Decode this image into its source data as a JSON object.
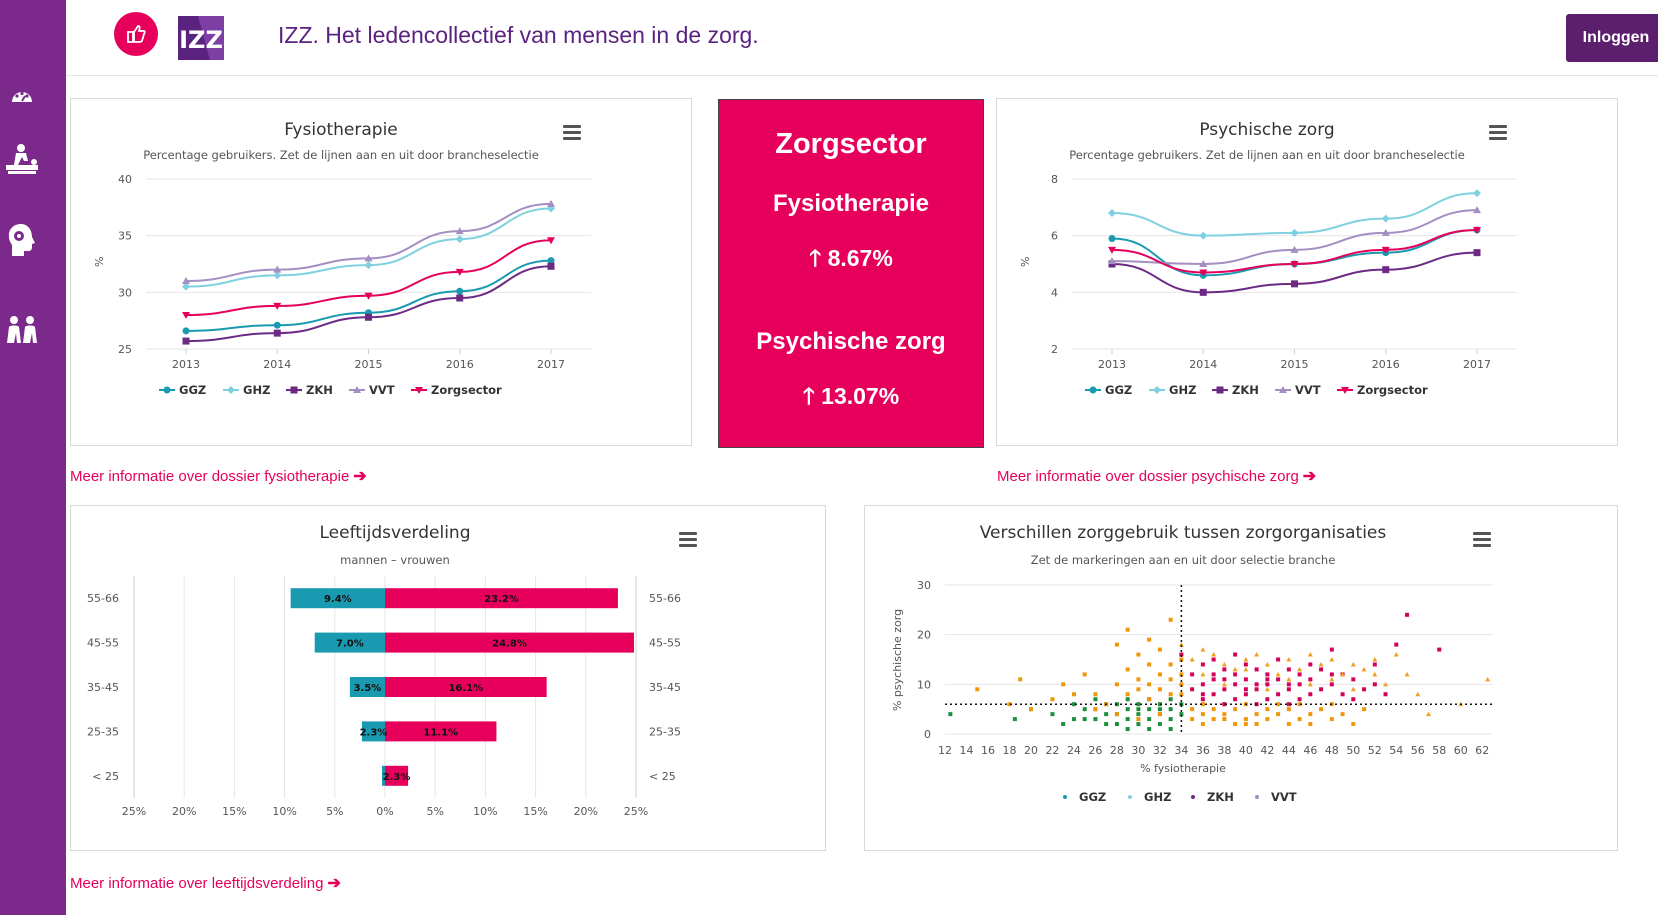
{
  "header": {
    "logo_text": "IZZ",
    "brand": "IZZ.",
    "tagline": "Het ledencollectief van mensen in de zorg.",
    "login_label": "Inloggen"
  },
  "sidebar": {
    "items": [
      {
        "icon": "dashboard-icon"
      },
      {
        "icon": "physiotherapy-icon"
      },
      {
        "icon": "mind-icon"
      },
      {
        "icon": "people-icon"
      }
    ]
  },
  "colors": {
    "GGZ": "#1a9ab0",
    "GHZ": "#7fd0e0",
    "ZKH": "#6c2a84",
    "VVT": "#a48ec2",
    "Zorgsector": "#e6005c",
    "accent": "#e6005c",
    "sidebar": "#7b2a8c",
    "brand": "#5b2380",
    "scatter_ggz": "#1a8f3c",
    "scatter_ghz": "#f0960a",
    "scatter_zkh": "#d4005a",
    "scatter_vvt": "#f0a020"
  },
  "zorgsector_card": {
    "title": "Zorgsector",
    "item1_label": "Fysiotherapie",
    "item1_value": "8.67%",
    "item2_label": "Psychische zorg",
    "item2_value": "13.07%"
  },
  "links": {
    "fysio": "Meer informatie over dossier fysiotherapie",
    "psych": "Meer informatie over dossier psychische zorg",
    "leeftijd": "Meer informatie over leeftijdsverdeling"
  },
  "chart_data": [
    {
      "id": "fysio",
      "type": "line",
      "title": "Fysiotherapie",
      "subtitle": "Percentage gebruikers. Zet de lijnen aan en uit door brancheselectie",
      "ylabel": "%",
      "ylim": [
        25,
        40
      ],
      "yticks": [
        25,
        30,
        35,
        40
      ],
      "categories": [
        "2013",
        "2014",
        "2015",
        "2016",
        "2017"
      ],
      "series": [
        {
          "name": "GGZ",
          "values": [
            26.6,
            27.1,
            28.2,
            30.1,
            32.8
          ]
        },
        {
          "name": "GHZ",
          "values": [
            30.5,
            31.5,
            32.4,
            34.7,
            37.4
          ]
        },
        {
          "name": "ZKH",
          "values": [
            25.7,
            26.4,
            27.8,
            29.5,
            32.3
          ]
        },
        {
          "name": "VVT",
          "values": [
            31.0,
            32.0,
            33.0,
            35.4,
            37.8
          ]
        },
        {
          "name": "Zorgsector",
          "values": [
            28.0,
            28.8,
            29.7,
            31.8,
            34.6
          ]
        }
      ]
    },
    {
      "id": "psych",
      "type": "line",
      "title": "Psychische zorg",
      "subtitle": "Percentage gebruikers. Zet de lijnen aan en uit door brancheselectie",
      "ylabel": "%",
      "ylim": [
        2,
        8
      ],
      "yticks": [
        2,
        4,
        6,
        8
      ],
      "categories": [
        "2013",
        "2014",
        "2015",
        "2016",
        "2017"
      ],
      "series": [
        {
          "name": "GGZ",
          "values": [
            5.9,
            4.6,
            5.0,
            5.4,
            6.2
          ]
        },
        {
          "name": "GHZ",
          "values": [
            6.8,
            6.0,
            6.1,
            6.6,
            7.5
          ]
        },
        {
          "name": "ZKH",
          "values": [
            5.0,
            4.0,
            4.3,
            4.8,
            5.4
          ]
        },
        {
          "name": "VVT",
          "values": [
            5.1,
            5.0,
            5.5,
            6.1,
            6.9
          ]
        },
        {
          "name": "Zorgsector",
          "values": [
            5.5,
            4.7,
            5.0,
            5.5,
            6.2
          ]
        }
      ]
    },
    {
      "id": "leeftijd",
      "type": "bar",
      "title": "Leeftijdsverdeling",
      "subtitle": "mannen – vrouwen",
      "categories": [
        "55-66",
        "45-55",
        "35-45",
        "25-35",
        "< 25"
      ],
      "xticks": [
        "25%",
        "20%",
        "15%",
        "10%",
        "5%",
        "0%",
        "5%",
        "10%",
        "15%",
        "20%",
        "25%"
      ],
      "xlim": [
        -25,
        25
      ],
      "series": [
        {
          "name": "mannen",
          "values": [
            9.4,
            7.0,
            3.5,
            2.3,
            0.3
          ],
          "labels": [
            "9.4%",
            "7.0%",
            "3.5%",
            "2.3%",
            ""
          ]
        },
        {
          "name": "vrouwen",
          "values": [
            23.2,
            24.8,
            16.1,
            11.1,
            2.3
          ],
          "labels": [
            "23.2%",
            "24.8%",
            "16.1%",
            "11.1%",
            "2.3%"
          ]
        }
      ]
    },
    {
      "id": "verschillen",
      "type": "scatter",
      "title": "Verschillen zorggebruik tussen zorgorganisaties",
      "subtitle": "Zet de markeringen aan en uit door selectie branche",
      "xlabel": "% fysiotherapie",
      "ylabel": "% psychische zorg",
      "xlim": [
        12,
        63
      ],
      "ylim": [
        0,
        30
      ],
      "xticks": [
        12,
        14,
        16,
        18,
        20,
        22,
        24,
        26,
        28,
        30,
        32,
        34,
        36,
        38,
        40,
        42,
        44,
        46,
        48,
        50,
        52,
        54,
        56,
        58,
        60,
        62
      ],
      "yticks": [
        0,
        10,
        20,
        30
      ],
      "reference_x": 34,
      "reference_y": 6,
      "legend": [
        "GGZ",
        "GHZ",
        "ZKH",
        "VVT"
      ],
      "series": [
        {
          "name": "GGZ",
          "points": [
            [
              12.5,
              4
            ],
            [
              18.5,
              3
            ],
            [
              20,
              5
            ],
            [
              22,
              4
            ],
            [
              23,
              2
            ],
            [
              24,
              6
            ],
            [
              25,
              3
            ],
            [
              26,
              5
            ],
            [
              27,
              4
            ],
            [
              28,
              6
            ],
            [
              28,
              2
            ],
            [
              29,
              5
            ],
            [
              29,
              3
            ],
            [
              30,
              4
            ],
            [
              30,
              6
            ],
            [
              30,
              2
            ],
            [
              31,
              5
            ],
            [
              31,
              3
            ],
            [
              32,
              4
            ],
            [
              32,
              6
            ],
            [
              32,
              2
            ],
            [
              33,
              5
            ],
            [
              33,
              3
            ],
            [
              33,
              1
            ],
            [
              34,
              4
            ],
            [
              34,
              6
            ],
            [
              26,
              3
            ],
            [
              27,
              6
            ],
            [
              28,
              4
            ],
            [
              29,
              7
            ],
            [
              30,
              5
            ],
            [
              31,
              1
            ],
            [
              31,
              7
            ],
            [
              32,
              5
            ],
            [
              33,
              7
            ],
            [
              25,
              5
            ],
            [
              24,
              3
            ],
            [
              27,
              2
            ],
            [
              29,
              1
            ],
            [
              26,
              7
            ]
          ]
        },
        {
          "name": "GHZ",
          "points": [
            [
              15,
              9
            ],
            [
              19,
              11
            ],
            [
              22,
              7
            ],
            [
              23,
              10
            ],
            [
              25,
              12
            ],
            [
              26,
              8
            ],
            [
              27,
              6
            ],
            [
              28,
              18
            ],
            [
              28,
              10
            ],
            [
              29,
              21
            ],
            [
              29,
              13
            ],
            [
              29,
              8
            ],
            [
              30,
              16
            ],
            [
              30,
              11
            ],
            [
              30,
              9
            ],
            [
              31,
              19
            ],
            [
              31,
              14
            ],
            [
              31,
              10
            ],
            [
              31,
              7
            ],
            [
              32,
              17
            ],
            [
              32,
              12
            ],
            [
              32,
              9
            ],
            [
              33,
              23
            ],
            [
              33,
              14
            ],
            [
              33,
              11
            ],
            [
              33,
              8
            ],
            [
              34,
              15
            ],
            [
              34,
              12
            ],
            [
              34,
              10
            ],
            [
              34,
              8
            ],
            [
              35,
              5
            ],
            [
              35,
              3
            ],
            [
              36,
              4
            ],
            [
              36,
              2
            ],
            [
              37,
              5
            ],
            [
              37,
              3
            ],
            [
              38,
              4
            ],
            [
              38,
              6
            ],
            [
              39,
              2
            ],
            [
              39,
              5
            ],
            [
              40,
              3
            ],
            [
              40,
              6
            ],
            [
              41,
              4
            ],
            [
              41,
              2
            ],
            [
              42,
              5
            ],
            [
              42,
              3
            ],
            [
              43,
              4
            ],
            [
              43,
              6
            ],
            [
              44,
              2
            ],
            [
              44,
              5
            ],
            [
              45,
              3
            ],
            [
              45,
              6
            ],
            [
              46,
              4
            ],
            [
              46,
              2
            ],
            [
              47,
              5
            ],
            [
              48,
              3
            ],
            [
              48,
              6
            ],
            [
              49,
              4
            ],
            [
              50,
              2
            ],
            [
              51,
              5
            ],
            [
              28,
              4
            ],
            [
              30,
              3
            ],
            [
              32,
              4
            ],
            [
              26,
              5
            ],
            [
              24,
              8
            ],
            [
              20,
              5
            ],
            [
              18,
              6
            ],
            [
              36,
              6
            ],
            [
              38,
              3
            ],
            [
              40,
              2
            ]
          ]
        },
        {
          "name": "ZKH",
          "points": [
            [
              34,
              16
            ],
            [
              35,
              12
            ],
            [
              35,
              9
            ],
            [
              36,
              14
            ],
            [
              36,
              10
            ],
            [
              36,
              7
            ],
            [
              37,
              11
            ],
            [
              37,
              8
            ],
            [
              37,
              15
            ],
            [
              38,
              13
            ],
            [
              38,
              9
            ],
            [
              38,
              6
            ],
            [
              39,
              12
            ],
            [
              39,
              10
            ],
            [
              39,
              7
            ],
            [
              39,
              16
            ],
            [
              40,
              11
            ],
            [
              40,
              8
            ],
            [
              40,
              14
            ],
            [
              41,
              13
            ],
            [
              41,
              9
            ],
            [
              41,
              6
            ],
            [
              42,
              12
            ],
            [
              42,
              10
            ],
            [
              42,
              7
            ],
            [
              43,
              15
            ],
            [
              43,
              11
            ],
            [
              43,
              8
            ],
            [
              44,
              13
            ],
            [
              44,
              9
            ],
            [
              44,
              6
            ],
            [
              45,
              12
            ],
            [
              45,
              10
            ],
            [
              45,
              7
            ],
            [
              46,
              14
            ],
            [
              46,
              11
            ],
            [
              47,
              9
            ],
            [
              47,
              13
            ],
            [
              48,
              10
            ],
            [
              48,
              17
            ],
            [
              49,
              8
            ],
            [
              49,
              12
            ],
            [
              50,
              11
            ],
            [
              51,
              9
            ],
            [
              52,
              14
            ],
            [
              53,
              8
            ],
            [
              54,
              18
            ],
            [
              55,
              24
            ],
            [
              58,
              17
            ],
            [
              36,
              8
            ],
            [
              38,
              11
            ],
            [
              40,
              9
            ],
            [
              42,
              11
            ],
            [
              44,
              10
            ],
            [
              46,
              8
            ],
            [
              48,
              12
            ],
            [
              50,
              7
            ],
            [
              52,
              10
            ],
            [
              37,
              12
            ],
            [
              41,
              10
            ]
          ]
        },
        {
          "name": "VVT",
          "points": [
            [
              34,
              18
            ],
            [
              35,
              15
            ],
            [
              36,
              17
            ],
            [
              37,
              16
            ],
            [
              38,
              14
            ],
            [
              39,
              13
            ],
            [
              40,
              15
            ],
            [
              41,
              16
            ],
            [
              42,
              14
            ],
            [
              43,
              12
            ],
            [
              44,
              15
            ],
            [
              45,
              13
            ],
            [
              46,
              16
            ],
            [
              47,
              14
            ],
            [
              48,
              15
            ],
            [
              49,
              12
            ],
            [
              50,
              14
            ],
            [
              51,
              13
            ],
            [
              52,
              15
            ],
            [
              53,
              10
            ],
            [
              54,
              16
            ],
            [
              55,
              12
            ],
            [
              56,
              8
            ],
            [
              57,
              4
            ],
            [
              60,
              6
            ],
            [
              62.5,
              11
            ],
            [
              36,
              12
            ],
            [
              38,
              10
            ],
            [
              40,
              13
            ],
            [
              42,
              9
            ],
            [
              44,
              11
            ],
            [
              46,
              10
            ],
            [
              48,
              11
            ],
            [
              50,
              9
            ],
            [
              52,
              12
            ]
          ]
        }
      ]
    }
  ]
}
